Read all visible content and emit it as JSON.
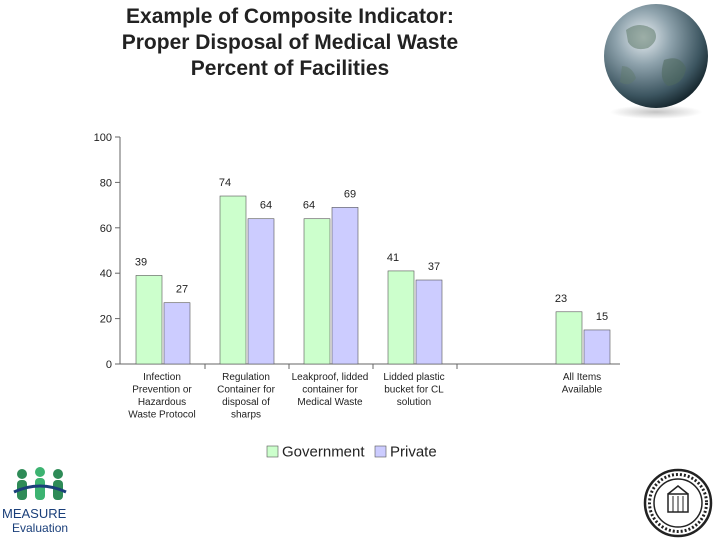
{
  "title_lines": [
    "Example of Composite Indicator:",
    "Proper Disposal of Medical Waste",
    "Percent of Facilities"
  ],
  "chart_data": {
    "type": "bar",
    "categories": [
      [
        "Infection",
        "Prevention or",
        "Hazardous",
        "Waste Protocol"
      ],
      [
        "Regulation",
        "Container for",
        "disposal of",
        "sharps"
      ],
      [
        "Leakproof, lidded",
        "container for",
        "Medical Waste"
      ],
      [
        "Lidded plastic",
        "bucket for CL",
        "solution"
      ],
      [
        "All Items",
        "Available"
      ]
    ],
    "series": [
      {
        "name": "Government",
        "values": [
          39,
          74,
          64,
          41,
          23
        ],
        "color": "#ccffcc"
      },
      {
        "name": "Private",
        "values": [
          27,
          64,
          69,
          37,
          15
        ],
        "color": "#ccccff"
      }
    ],
    "ylim": [
      0,
      100
    ],
    "yticks": [
      0,
      20,
      40,
      60,
      80,
      100
    ],
    "legend_position": "bottom-center",
    "grid": false
  },
  "logos": {
    "left_brand": "MEASURE",
    "left_sub": "Evaluation"
  },
  "colors": {
    "bar_outline": "#555555",
    "axis": "#666666"
  }
}
